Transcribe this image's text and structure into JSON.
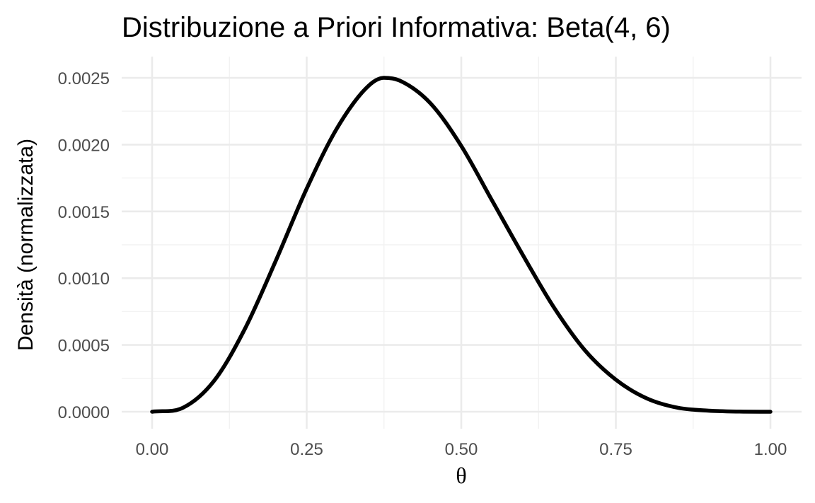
{
  "chart_data": {
    "type": "line",
    "title": "Distribuzione a Priori Informativa: Beta(4, 6)",
    "xlabel": "θ",
    "ylabel": "Densità (normalizzata)",
    "xlim": [
      0,
      1
    ],
    "ylim": [
      0,
      0.0025
    ],
    "x_ticks": [
      0,
      0.25,
      0.5,
      0.75,
      1
    ],
    "x_tick_labels": [
      "0.00",
      "0.25",
      "0.50",
      "0.75",
      "1.00"
    ],
    "y_ticks": [
      0,
      0.0005,
      0.001,
      0.0015,
      0.002,
      0.0025
    ],
    "y_tick_labels": [
      "0.0000",
      "0.0005",
      "0.0010",
      "0.0015",
      "0.0020",
      "0.0025"
    ],
    "grid": true,
    "legend": "none",
    "series": [
      {
        "line_color": "#000000",
        "x": [
          0,
          0.05,
          0.1,
          0.15,
          0.2,
          0.25,
          0.3,
          0.35,
          0.375,
          0.4,
          0.45,
          0.5,
          0.55,
          0.6,
          0.65,
          0.7,
          0.75,
          0.8,
          0.85,
          0.9,
          0.95,
          1
        ],
        "y": [
          0,
          3e-05,
          0.00023,
          0.00062,
          0.00113,
          0.00167,
          0.00213,
          0.00244,
          0.0025,
          0.00248,
          0.00231,
          0.00199,
          0.00158,
          0.00117,
          0.00078,
          0.00046,
          0.00024,
          0.0001,
          3e-05,
          8e-06,
          1e-06,
          0
        ]
      }
    ]
  }
}
